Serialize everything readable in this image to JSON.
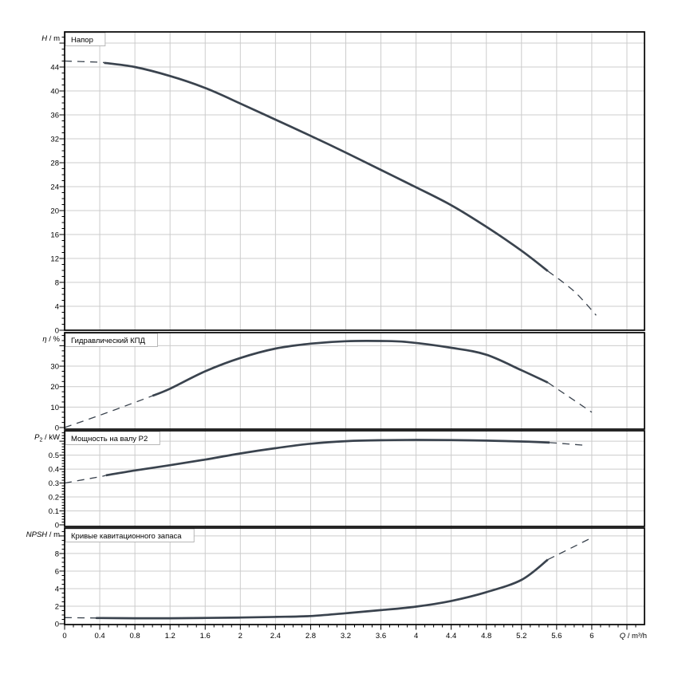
{
  "colors": {
    "curve": "#3a434e",
    "grid": "#cccccc",
    "axis": "#000000",
    "text": "#000000",
    "title_box_border": "#b0b0b0",
    "background": "#ffffff"
  },
  "x_axis": {
    "sym": "Q",
    "unit": "m³/h",
    "label": "Q / m³/h",
    "min": 0,
    "max": 6.6,
    "major": 0.4,
    "minor": 0.1,
    "ticks": [
      [
        "0",
        0
      ],
      [
        "0.4",
        0.4
      ],
      [
        "0.8",
        0.8
      ],
      [
        "1.2",
        1.2
      ],
      [
        "1.6",
        1.6
      ],
      [
        "2",
        2
      ],
      [
        "2.4",
        2.4
      ],
      [
        "2.8",
        2.8
      ],
      [
        "3.2",
        3.2
      ],
      [
        "3.6",
        3.6
      ],
      [
        "4",
        4
      ],
      [
        "4.4",
        4.4
      ],
      [
        "4.8",
        4.8
      ],
      [
        "5.2",
        5.2
      ],
      [
        "5.6",
        5.6
      ],
      [
        "6",
        6
      ]
    ]
  },
  "chart_data": [
    {
      "type": "line",
      "title": "Напор",
      "ylabel_sym": "H",
      "ylabel_sub": "",
      "ylabel_unit": "m",
      "ymin": 0,
      "ymax": 49.87,
      "y_major": 4,
      "y_minor": 1,
      "y_ticks": [
        [
          "0",
          0
        ],
        [
          "4",
          4
        ],
        [
          "8",
          8
        ],
        [
          "12",
          12
        ],
        [
          "16",
          16
        ],
        [
          "20",
          20
        ],
        [
          "24",
          24
        ],
        [
          "28",
          28
        ],
        [
          "32",
          32
        ],
        [
          "36",
          36
        ],
        [
          "40",
          40
        ],
        [
          "44",
          44
        ]
      ],
      "series": [
        {
          "name": "head-curve",
          "solid_range": [
            0.45,
            5.5
          ],
          "points": [
            [
              0,
              45.0
            ],
            [
              0.4,
              44.8
            ],
            [
              0.8,
              44.0
            ],
            [
              1.2,
              42.5
            ],
            [
              1.6,
              40.5
            ],
            [
              2.0,
              37.9
            ],
            [
              2.4,
              35.2
            ],
            [
              2.8,
              32.5
            ],
            [
              3.2,
              29.7
            ],
            [
              3.6,
              26.8
            ],
            [
              4.0,
              23.9
            ],
            [
              4.4,
              20.9
            ],
            [
              4.8,
              17.3
            ],
            [
              5.2,
              13.3
            ],
            [
              5.5,
              9.9
            ],
            [
              5.8,
              6.5
            ],
            [
              6.05,
              2.5
            ]
          ]
        }
      ]
    },
    {
      "type": "line",
      "title": "Гидравлический КПД",
      "ylabel_sym": "η",
      "ylabel_sub": "",
      "ylabel_unit": "%",
      "ymin": 0,
      "ymax": 46.4,
      "y_major": 10,
      "y_minor": 2.5,
      "y_ticks": [
        [
          "0",
          0
        ],
        [
          "10",
          10
        ],
        [
          "20",
          20
        ],
        [
          "30",
          30
        ]
      ],
      "series": [
        {
          "name": "efficiency-curve",
          "solid_range": [
            1.0,
            5.5
          ],
          "points": [
            [
              0,
              0
            ],
            [
              0.4,
              6
            ],
            [
              0.8,
              12.3
            ],
            [
              1.0,
              15.5
            ],
            [
              1.2,
              19
            ],
            [
              1.6,
              27.5
            ],
            [
              2.0,
              34
            ],
            [
              2.4,
              38.6
            ],
            [
              2.8,
              41
            ],
            [
              3.2,
              42.2
            ],
            [
              3.6,
              42.3
            ],
            [
              3.9,
              41.8
            ],
            [
              4.4,
              39
            ],
            [
              4.8,
              35.6
            ],
            [
              5.2,
              28
            ],
            [
              5.5,
              22
            ],
            [
              6.0,
              7.5
            ]
          ]
        }
      ]
    },
    {
      "type": "line",
      "title": "Мощность на валу P2",
      "ylabel_sym": "P",
      "ylabel_sub": "2",
      "ylabel_unit": "kW",
      "ymin": 0,
      "ymax": 0.675,
      "y_major": 0.1,
      "y_minor": 0.02,
      "y_ticks": [
        [
          "0",
          0
        ],
        [
          "0.1",
          0.1
        ],
        [
          "0.2",
          0.2
        ],
        [
          "0.3",
          0.3
        ],
        [
          "0.4",
          0.4
        ],
        [
          "0.5",
          0.5
        ]
      ],
      "series": [
        {
          "name": "shaft-power-curve",
          "solid_range": [
            0.47,
            5.52
          ],
          "points": [
            [
              0,
              0.3
            ],
            [
              0.4,
              0.345
            ],
            [
              0.47,
              0.355
            ],
            [
              0.8,
              0.39
            ],
            [
              1.2,
              0.428
            ],
            [
              1.6,
              0.468
            ],
            [
              2.0,
              0.512
            ],
            [
              2.4,
              0.55
            ],
            [
              2.8,
              0.582
            ],
            [
              3.2,
              0.6
            ],
            [
              3.6,
              0.607
            ],
            [
              4.0,
              0.609
            ],
            [
              4.4,
              0.608
            ],
            [
              4.8,
              0.604
            ],
            [
              5.2,
              0.598
            ],
            [
              5.52,
              0.59
            ],
            [
              5.94,
              0.57
            ]
          ]
        }
      ]
    },
    {
      "type": "line",
      "title": "Кривые кавитационного запаса",
      "ylabel_sym": "NPSH",
      "ylabel_sub": "",
      "ylabel_unit": "m",
      "ymin": 0,
      "ymax": 10.9,
      "y_major": 2,
      "y_minor": 0.5,
      "y_ticks": [
        [
          "0",
          0
        ],
        [
          "2",
          2
        ],
        [
          "4",
          4
        ],
        [
          "6",
          6
        ],
        [
          "8",
          8
        ]
      ],
      "series": [
        {
          "name": "npsh-curve",
          "solid_range": [
            0.38,
            5.5
          ],
          "points": [
            [
              0,
              0.7
            ],
            [
              0.4,
              0.65
            ],
            [
              0.8,
              0.63
            ],
            [
              1.2,
              0.63
            ],
            [
              1.6,
              0.66
            ],
            [
              2.0,
              0.71
            ],
            [
              2.4,
              0.78
            ],
            [
              2.8,
              0.88
            ],
            [
              3.2,
              1.2
            ],
            [
              3.6,
              1.55
            ],
            [
              4.0,
              1.95
            ],
            [
              4.4,
              2.6
            ],
            [
              4.8,
              3.6
            ],
            [
              5.2,
              5.0
            ],
            [
              5.5,
              7.3
            ],
            [
              6.0,
              9.8
            ]
          ]
        }
      ]
    }
  ]
}
